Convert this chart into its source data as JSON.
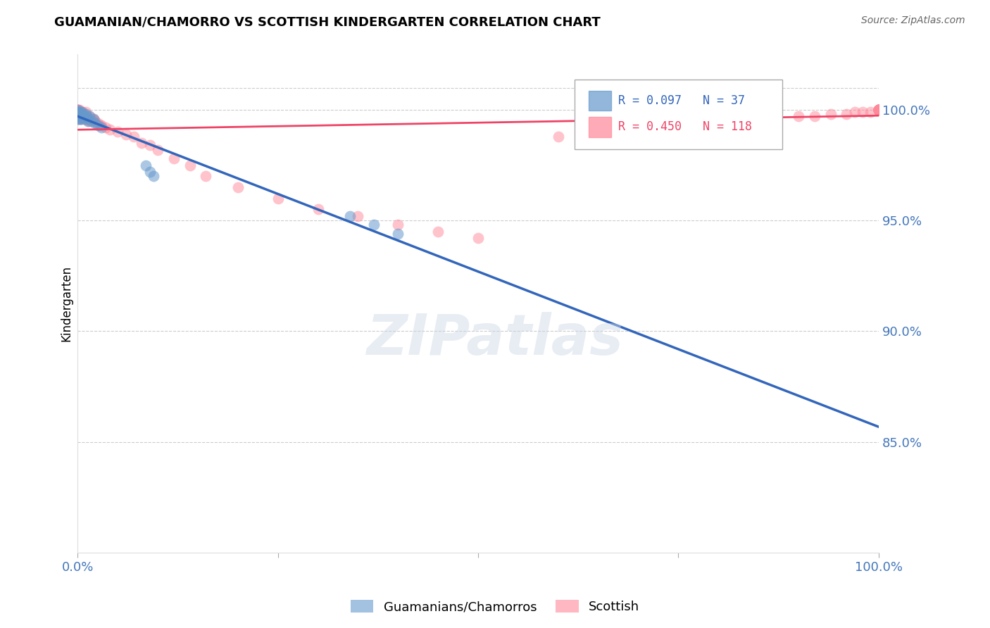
{
  "title": "GUAMANIAN/CHAMORRO VS SCOTTISH KINDERGARTEN CORRELATION CHART",
  "source": "Source: ZipAtlas.com",
  "ylabel": "Kindergarten",
  "legend_blue_label": "Guamanians/Chamorros",
  "legend_pink_label": "Scottish",
  "R_blue": 0.097,
  "N_blue": 37,
  "R_pink": 0.45,
  "N_pink": 118,
  "blue_color": "#6699cc",
  "pink_color": "#ff8899",
  "blue_line_color": "#3366bb",
  "pink_line_color": "#ee4466",
  "blue_points_x": [
    0.0,
    0.0,
    0.0,
    0.0,
    0.0,
    0.001,
    0.001,
    0.001,
    0.002,
    0.002,
    0.002,
    0.003,
    0.003,
    0.004,
    0.004,
    0.005,
    0.005,
    0.006,
    0.007,
    0.008,
    0.009,
    0.01,
    0.011,
    0.012,
    0.013,
    0.015,
    0.017,
    0.02,
    0.022,
    0.025,
    0.03,
    0.085,
    0.09,
    0.095,
    0.34,
    0.37,
    0.4
  ],
  "blue_points_y": [
    1.0,
    0.999,
    0.998,
    0.997,
    0.996,
    0.999,
    0.998,
    0.997,
    0.999,
    0.998,
    0.996,
    0.999,
    0.997,
    0.998,
    0.996,
    0.999,
    0.997,
    0.998,
    0.997,
    0.997,
    0.996,
    0.998,
    0.997,
    0.996,
    0.995,
    0.997,
    0.995,
    0.996,
    0.994,
    0.993,
    0.992,
    0.975,
    0.972,
    0.97,
    0.952,
    0.948,
    0.944
  ],
  "pink_points_x": [
    0.0,
    0.0,
    0.0,
    0.0,
    0.0,
    0.0,
    0.0,
    0.0,
    0.001,
    0.001,
    0.001,
    0.001,
    0.001,
    0.002,
    0.002,
    0.002,
    0.003,
    0.003,
    0.003,
    0.004,
    0.004,
    0.005,
    0.005,
    0.005,
    0.006,
    0.006,
    0.007,
    0.008,
    0.009,
    0.01,
    0.01,
    0.011,
    0.012,
    0.013,
    0.015,
    0.016,
    0.018,
    0.02,
    0.022,
    0.025,
    0.028,
    0.03,
    0.035,
    0.04,
    0.05,
    0.06,
    0.07,
    0.08,
    0.09,
    0.1,
    0.12,
    0.14,
    0.16,
    0.2,
    0.25,
    0.3,
    0.35,
    0.4,
    0.45,
    0.5,
    1.0,
    1.0,
    1.0,
    1.0,
    1.0,
    1.0,
    1.0,
    1.0,
    1.0,
    1.0,
    1.0,
    1.0,
    1.0,
    1.0,
    1.0,
    1.0,
    1.0,
    1.0,
    1.0,
    1.0,
    1.0,
    1.0,
    1.0,
    1.0,
    1.0,
    1.0,
    1.0,
    1.0,
    1.0,
    1.0,
    1.0,
    1.0,
    1.0,
    1.0,
    1.0,
    1.0,
    1.0,
    1.0,
    1.0,
    1.0,
    1.0,
    1.0,
    1.0,
    1.0,
    1.0,
    1.0,
    1.0,
    1.0,
    0.7,
    0.75,
    0.8,
    0.85,
    0.9,
    0.92,
    0.94,
    0.96,
    0.97,
    0.98,
    0.99,
    0.6,
    0.65
  ],
  "pink_points_y": [
    1.0,
    1.0,
    0.999,
    0.999,
    0.998,
    0.998,
    0.997,
    0.996,
    1.0,
    0.999,
    0.998,
    0.997,
    0.996,
    1.0,
    0.999,
    0.997,
    0.999,
    0.998,
    0.996,
    0.999,
    0.997,
    0.999,
    0.998,
    0.996,
    0.999,
    0.997,
    0.998,
    0.998,
    0.997,
    0.999,
    0.997,
    0.997,
    0.996,
    0.995,
    0.997,
    0.995,
    0.996,
    0.996,
    0.995,
    0.994,
    0.993,
    0.993,
    0.992,
    0.991,
    0.99,
    0.989,
    0.988,
    0.985,
    0.984,
    0.982,
    0.978,
    0.975,
    0.97,
    0.965,
    0.96,
    0.955,
    0.952,
    0.948,
    0.945,
    0.942,
    1.0,
    1.0,
    1.0,
    1.0,
    1.0,
    1.0,
    1.0,
    1.0,
    1.0,
    1.0,
    1.0,
    1.0,
    1.0,
    1.0,
    1.0,
    1.0,
    1.0,
    1.0,
    1.0,
    1.0,
    1.0,
    1.0,
    1.0,
    1.0,
    1.0,
    1.0,
    1.0,
    1.0,
    1.0,
    1.0,
    1.0,
    1.0,
    1.0,
    1.0,
    1.0,
    1.0,
    1.0,
    1.0,
    1.0,
    1.0,
    1.0,
    1.0,
    1.0,
    1.0,
    1.0,
    1.0,
    1.0,
    1.0,
    0.99,
    0.992,
    0.994,
    0.996,
    0.997,
    0.997,
    0.998,
    0.998,
    0.999,
    0.999,
    0.999,
    0.988,
    0.989
  ]
}
